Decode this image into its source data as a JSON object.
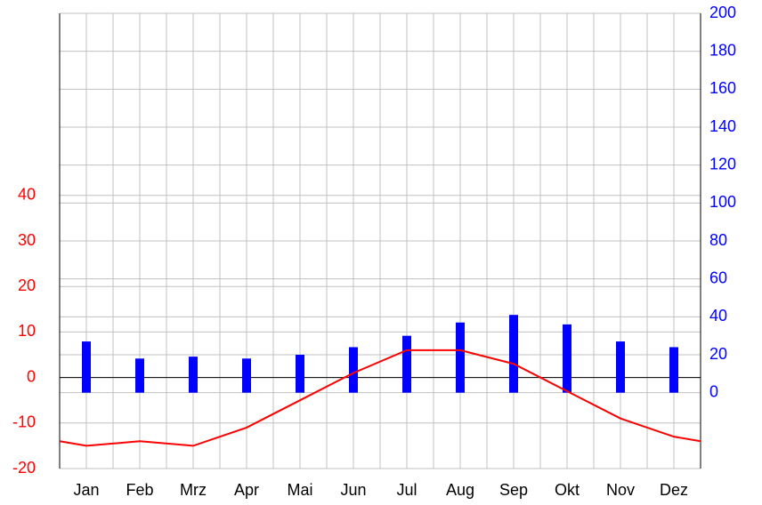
{
  "chart_data": {
    "type": "climate",
    "categories": [
      "Jan",
      "Feb",
      "Mrz",
      "Apr",
      "Mai",
      "Jun",
      "Jul",
      "Aug",
      "Sep",
      "Okt",
      "Nov",
      "Dez"
    ],
    "series": [
      {
        "color": "#ff0000",
        "axis": "y",
        "kind": "line",
        "values": [
          -15,
          -14,
          -15,
          -11,
          -5,
          1,
          6,
          6,
          3,
          -3,
          -9,
          -13
        ]
      },
      {
        "color": "#0000ff",
        "axis": "y2",
        "kind": "bar",
        "values": [
          27,
          18,
          19,
          18,
          20,
          24,
          30,
          37,
          41,
          36,
          27,
          24
        ]
      }
    ],
    "ylim": [
      -20,
      80
    ],
    "yticks": [
      -20,
      -10,
      0,
      10,
      20,
      30,
      40
    ],
    "y2lim": [
      -40,
      200
    ],
    "y2ticks": [
      0,
      20,
      40,
      60,
      80,
      100,
      120,
      140,
      160,
      180,
      200
    ],
    "grid": true
  }
}
